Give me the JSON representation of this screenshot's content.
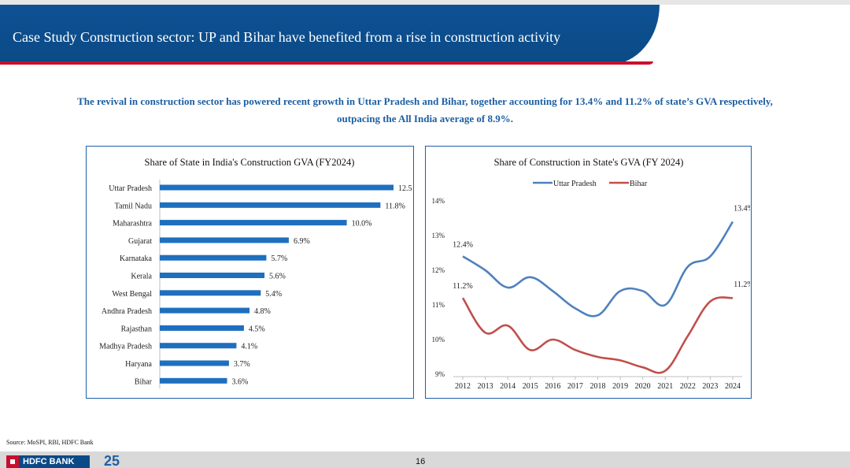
{
  "header": {
    "title": "Case Study Construction sector: UP and Bihar have benefited from a rise in construction activity"
  },
  "lead": "The revival in construction sector has powered recent growth in Uttar Pradesh and Bihar, together accounting for 13.4% and 11.2% of state’s GVA respectively, outpacing the All India average of 8.9%.",
  "footer": {
    "source": "Source: MoSPI, RBI, HDFC Bank",
    "logo_text": "HDFC BANK",
    "logo_badge": "25",
    "page_number": "16"
  },
  "colors": {
    "header_blue": "#0b4a86",
    "bar_blue": "#1f6fbf",
    "up_line": "#4f81bd",
    "bihar_line": "#c0504d",
    "accent_red": "#c8102e"
  },
  "chart_data": [
    {
      "type": "bar",
      "orientation": "horizontal",
      "title": "Share of State in India's Construction GVA (FY2024)",
      "categories": [
        "Uttar Pradesh",
        "Tamil Nadu",
        "Maharashtra",
        "Gujarat",
        "Karnataka",
        "Kerala",
        "West Bengal",
        "Andhra Pradesh",
        "Rajasthan",
        "Madhya Pradesh",
        "Haryana",
        "Bihar"
      ],
      "values": [
        12.5,
        11.8,
        10.0,
        6.9,
        5.7,
        5.6,
        5.4,
        4.8,
        4.5,
        4.1,
        3.7,
        3.6
      ],
      "value_labels": [
        "12.5%",
        "11.8%",
        "10.0%",
        "6.9%",
        "5.7%",
        "5.6%",
        "5.4%",
        "4.8%",
        "4.5%",
        "4.1%",
        "3.7%",
        "3.6%"
      ],
      "xlim": [
        0,
        12.5
      ],
      "grid": false
    },
    {
      "type": "line",
      "title": "Share of Construction in State's GVA (FY 2024)",
      "x": [
        "2012",
        "2013",
        "2014",
        "2015",
        "2016",
        "2017",
        "2018",
        "2019",
        "2020",
        "2021",
        "2022",
        "2023",
        "2024"
      ],
      "series": [
        {
          "name": "Uttar Pradesh",
          "values": [
            12.4,
            12.0,
            11.5,
            11.8,
            11.4,
            10.9,
            10.7,
            11.4,
            11.4,
            11.0,
            12.1,
            12.4,
            13.4
          ]
        },
        {
          "name": "Bihar",
          "values": [
            11.2,
            10.2,
            10.4,
            9.7,
            10.0,
            9.7,
            9.5,
            9.4,
            9.2,
            9.1,
            10.1,
            11.1,
            11.2
          ]
        }
      ],
      "data_labels": [
        {
          "series": "Uttar Pradesh",
          "x": "2012",
          "text": "12.4%"
        },
        {
          "series": "Uttar Pradesh",
          "x": "2024",
          "text": "13.4%"
        },
        {
          "series": "Bihar",
          "x": "2012",
          "text": "11.2%"
        },
        {
          "series": "Bihar",
          "x": "2024",
          "text": "11.2%"
        }
      ],
      "ylim": [
        9,
        14
      ],
      "y_ticks": [
        9,
        10,
        11,
        12,
        13,
        14
      ],
      "y_tick_labels": [
        "9%",
        "10%",
        "11%",
        "12%",
        "13%",
        "14%"
      ],
      "legend": "top",
      "grid": false
    }
  ]
}
